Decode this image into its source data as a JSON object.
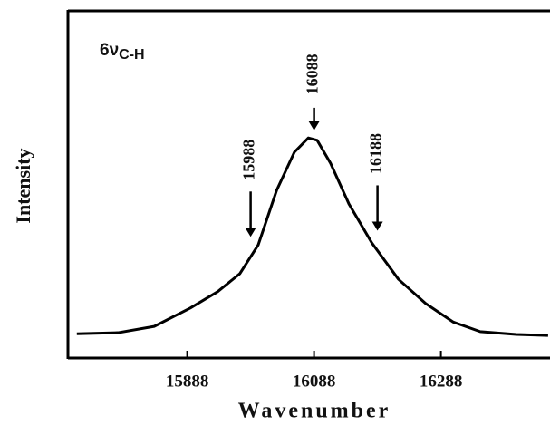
{
  "chart_data": {
    "type": "line",
    "annotation": {
      "text": "6ν",
      "subscript": "C-H"
    },
    "xlabel": "Wavenumber",
    "ylabel": "Intensity",
    "xlim": [
      15700,
      16460
    ],
    "ylim": [
      0,
      1
    ],
    "xticks": [
      15888,
      16088,
      16288
    ],
    "color": "#000000",
    "x": [
      15714,
      15779,
      15836,
      15893,
      15936,
      15971,
      16000,
      16029,
      16057,
      16079,
      16093,
      16114,
      16143,
      16179,
      16221,
      16264,
      16307,
      16350,
      16407,
      16457
    ],
    "values": [
      0.07,
      0.073,
      0.091,
      0.144,
      0.191,
      0.243,
      0.326,
      0.483,
      0.593,
      0.634,
      0.627,
      0.561,
      0.444,
      0.332,
      0.227,
      0.157,
      0.104,
      0.076,
      0.068,
      0.065
    ],
    "markers": [
      {
        "label": "15988",
        "x": 15988
      },
      {
        "label": "16088",
        "x": 16088
      },
      {
        "label": "16188",
        "x": 16188
      }
    ]
  }
}
